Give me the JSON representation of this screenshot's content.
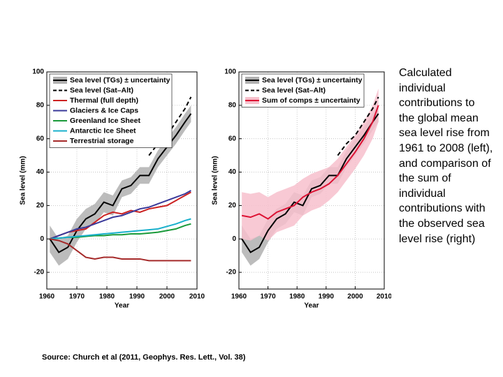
{
  "chart_data": [
    {
      "type": "line",
      "xlabel": "Year",
      "ylabel": "Sea level (mm)",
      "x": [
        1961,
        1964,
        1967,
        1970,
        1973,
        1976,
        1979,
        1982,
        1985,
        1988,
        1991,
        1994,
        1997,
        2000,
        2003,
        2006,
        2008
      ],
      "xlim": [
        1960,
        2010
      ],
      "xticks": [
        1960,
        1970,
        1980,
        1990,
        2000,
        2010
      ],
      "ylim": [
        -30,
        100
      ],
      "yticks": [
        -20,
        0,
        20,
        40,
        60,
        80,
        100
      ],
      "grid": true,
      "legend": "upper left",
      "series": [
        {
          "name": "Sea level (TGs) ± uncertainty",
          "color": "#000000",
          "band_color": "#b0b0b0",
          "values": [
            0,
            -8,
            -5,
            5,
            12,
            15,
            22,
            20,
            30,
            32,
            38,
            38,
            48,
            55,
            62,
            70,
            75
          ],
          "uncertainty": [
            8,
            8,
            7,
            7,
            6,
            6,
            6,
            6,
            5,
            5,
            5,
            5,
            5,
            5,
            5,
            5,
            5
          ]
        },
        {
          "name": "Sea level (Sat–Alt)",
          "color": "#000000",
          "dashed": true,
          "values": [
            null,
            null,
            null,
            null,
            null,
            null,
            null,
            null,
            null,
            null,
            null,
            50,
            57,
            62,
            70,
            78,
            85
          ]
        },
        {
          "name": "Thermal (full depth)",
          "color": "#cc2222",
          "values": [
            0,
            2,
            4,
            5,
            6,
            10,
            14,
            16,
            15,
            17,
            16,
            18,
            19,
            20,
            23,
            26,
            28
          ]
        },
        {
          "name": "Glaciers & Ice Caps",
          "color": "#3a3a9a",
          "values": [
            0,
            2,
            4,
            6,
            7,
            9,
            11,
            13,
            14,
            16,
            18,
            19,
            21,
            23,
            25,
            27,
            29
          ]
        },
        {
          "name": "Greenland Ice Sheet",
          "color": "#1a9a3a",
          "values": [
            0,
            0.5,
            1,
            1,
            1.5,
            2,
            2,
            2.5,
            2.5,
            3,
            3,
            3.5,
            4,
            5,
            6,
            8,
            9
          ]
        },
        {
          "name": "Antarctic Ice Sheet",
          "color": "#19b0cc",
          "values": [
            0,
            0.5,
            1,
            1.5,
            2,
            2.5,
            3,
            3.5,
            4,
            4.5,
            5,
            5.5,
            6,
            7.5,
            9,
            11,
            12
          ]
        },
        {
          "name": "Terrestrial storage",
          "color": "#a52a2a",
          "values": [
            0,
            -1,
            -3,
            -7,
            -11,
            -12,
            -11,
            -11,
            -12,
            -12,
            -12,
            -13,
            -13,
            -13,
            -13,
            -13,
            -13
          ]
        }
      ]
    },
    {
      "type": "line",
      "xlabel": "Year",
      "ylabel": "Sea level (mm)",
      "x": [
        1961,
        1964,
        1967,
        1970,
        1973,
        1976,
        1979,
        1982,
        1985,
        1988,
        1991,
        1994,
        1997,
        2000,
        2003,
        2006,
        2008
      ],
      "xlim": [
        1960,
        2010
      ],
      "xticks": [
        1960,
        1970,
        1980,
        1990,
        2000,
        2010
      ],
      "ylim": [
        -30,
        100
      ],
      "yticks": [
        -20,
        0,
        20,
        40,
        60,
        80,
        100
      ],
      "grid": true,
      "legend": "upper left",
      "series": [
        {
          "name": "Sea level (TGs) ± uncertainty",
          "color": "#000000",
          "band_color": "#b0b0b0",
          "values": [
            0,
            -8,
            -5,
            5,
            12,
            15,
            22,
            20,
            30,
            32,
            38,
            38,
            48,
            55,
            62,
            70,
            75
          ],
          "uncertainty": [
            8,
            8,
            7,
            7,
            6,
            6,
            6,
            6,
            5,
            5,
            5,
            5,
            5,
            5,
            5,
            5,
            5
          ]
        },
        {
          "name": "Sea level (Sat–Alt)",
          "color": "#000000",
          "dashed": true,
          "values": [
            null,
            null,
            null,
            null,
            null,
            null,
            null,
            null,
            null,
            null,
            null,
            50,
            57,
            62,
            70,
            78,
            85
          ]
        },
        {
          "name": "Sum of comps ± uncertainty",
          "color": "#dd1133",
          "band_color": "#f7c0cc",
          "values": [
            14,
            13,
            15,
            12,
            16,
            18,
            20,
            25,
            28,
            30,
            33,
            38,
            45,
            52,
            60,
            70,
            80
          ],
          "uncertainty": [
            14,
            14,
            13,
            13,
            12,
            12,
            12,
            11,
            11,
            11,
            10,
            10,
            10,
            10,
            10,
            10,
            10
          ]
        }
      ]
    }
  ],
  "caption": "Calculated individual contributions to the global mean sea level rise from 1961 to 2008 (left), and comparison of the sum of individual contributions with the observed sea level rise (right)",
  "source": "Source: Church et al (2011, Geophys. Res. Lett., Vol. 38)"
}
